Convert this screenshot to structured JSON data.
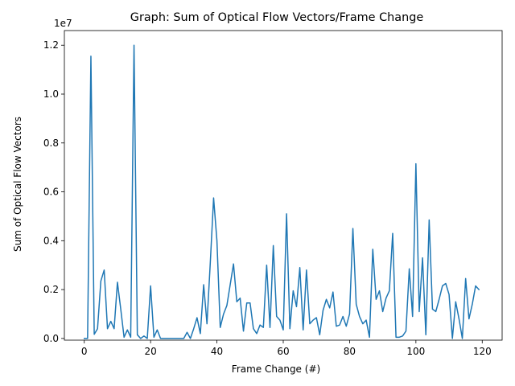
{
  "chart_data": {
    "type": "line",
    "title": "Graph: Sum of Optical Flow Vectors/Frame Change",
    "xlabel": "Frame Change (#)",
    "ylabel": "Sum of Optical Flow Vectors",
    "y_offset_text": "1e7",
    "xlim": [
      -6,
      126
    ],
    "ylim": [
      -0.07,
      12.6
    ],
    "x_ticks": [
      0,
      20,
      40,
      60,
      80,
      100,
      120
    ],
    "x_tick_labels": [
      "0",
      "20",
      "40",
      "60",
      "80",
      "100",
      "120"
    ],
    "y_ticks": [
      0.0,
      0.2,
      0.4,
      0.6,
      0.8,
      1.0,
      1.2
    ],
    "y_tick_values": [
      0,
      2,
      4,
      6,
      8,
      10,
      12
    ],
    "y_tick_labels": [
      "0.0",
      "0.2",
      "0.4",
      "0.6",
      "0.8",
      "1.0",
      "1.2"
    ],
    "grid": false,
    "series_color": "#1f77b4",
    "series": [
      {
        "x": [
          0,
          1,
          2,
          3,
          4,
          5,
          6,
          7,
          8,
          9,
          10,
          11,
          12,
          13,
          14,
          15,
          16,
          17,
          18,
          19,
          20,
          21,
          22,
          23,
          24,
          25,
          26,
          27,
          28,
          29,
          30,
          31,
          32,
          33,
          34,
          35,
          36,
          37,
          38,
          39,
          40,
          41,
          42,
          43,
          44,
          45,
          46,
          47,
          48,
          49,
          50,
          51,
          52,
          53,
          54,
          55,
          56,
          57,
          58,
          59,
          60,
          61,
          62,
          63,
          64,
          65,
          66,
          67,
          68,
          69,
          70,
          71,
          72,
          73,
          74,
          75,
          76,
          77,
          78,
          79,
          80,
          81,
          82,
          83,
          84,
          85,
          86,
          87,
          88,
          89,
          90,
          91,
          92,
          93,
          94,
          95,
          96,
          97,
          98,
          99,
          100,
          101,
          102,
          103,
          104,
          105,
          106,
          107,
          108,
          109,
          110,
          111,
          112,
          113,
          114,
          115,
          116,
          117,
          118,
          119
        ],
        "y": [
          0.0,
          0.0,
          11.55,
          0.17,
          0.4,
          2.35,
          2.8,
          0.4,
          0.7,
          0.4,
          2.3,
          1.2,
          0.05,
          0.35,
          0.05,
          12.0,
          0.15,
          0.0,
          0.1,
          0.0,
          2.15,
          0.05,
          0.35,
          0.0,
          0.0,
          0.0,
          0.0,
          0.0,
          0.0,
          0.0,
          0.0,
          0.25,
          0.0,
          0.4,
          0.85,
          0.2,
          2.2,
          0.6,
          3.1,
          5.75,
          4.0,
          0.45,
          1.0,
          1.35,
          2.2,
          3.05,
          1.5,
          1.65,
          0.3,
          1.45,
          1.45,
          0.4,
          0.2,
          0.55,
          0.45,
          3.0,
          0.45,
          3.8,
          0.9,
          0.75,
          0.35,
          5.1,
          0.4,
          1.95,
          1.3,
          2.9,
          0.35,
          2.8,
          0.6,
          0.75,
          0.85,
          0.15,
          1.15,
          1.6,
          1.25,
          1.9,
          0.5,
          0.55,
          0.9,
          0.5,
          1.0,
          4.5,
          1.4,
          0.9,
          0.6,
          0.75,
          0.05,
          3.65,
          1.6,
          1.95,
          1.1,
          1.65,
          1.95,
          4.3,
          0.05,
          0.05,
          0.1,
          0.3,
          2.85,
          0.9,
          7.15,
          1.1,
          3.3,
          0.15,
          4.85,
          1.2,
          1.1,
          1.6,
          2.15,
          2.25,
          1.8,
          0.0,
          1.5,
          0.8,
          0.0,
          2.45,
          0.8,
          1.4,
          2.15,
          2.0
        ]
      }
    ]
  }
}
